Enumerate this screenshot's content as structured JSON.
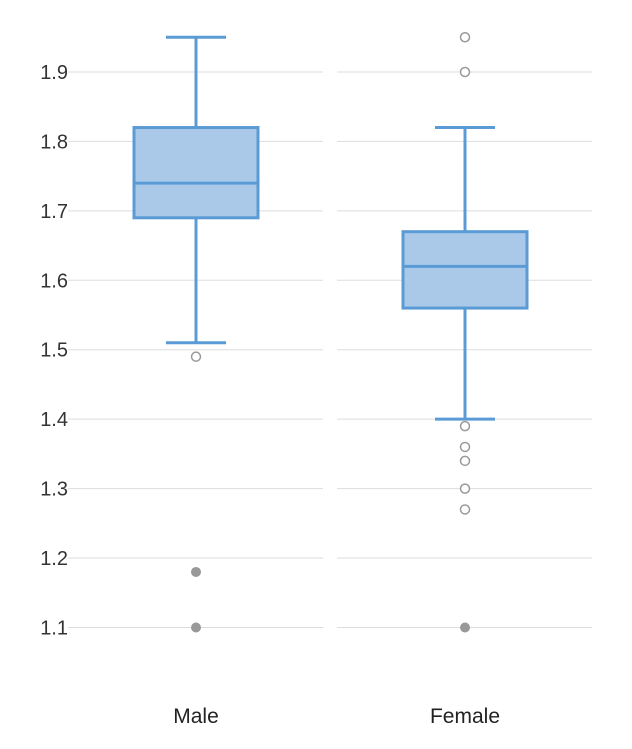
{
  "chart_data": {
    "type": "boxplot",
    "title": "",
    "xlabel": "",
    "ylabel": "",
    "ylim": [
      1.05,
      1.97
    ],
    "yticks": [
      1.1,
      1.2,
      1.3,
      1.4,
      1.5,
      1.6,
      1.7,
      1.8,
      1.9
    ],
    "ytick_labels": [
      "1.1",
      "1.2",
      "1.3",
      "1.4",
      "1.5",
      "1.6",
      "1.7",
      "1.8",
      "1.9"
    ],
    "grid": true,
    "categories": [
      "Male",
      "Female"
    ],
    "boxes": [
      {
        "category": "Male",
        "whisker_low": 1.51,
        "q1": 1.69,
        "median": 1.74,
        "q3": 1.82,
        "whisker_high": 1.95,
        "outliers": [
          1.49
        ],
        "far_outliers": [
          1.18,
          1.1
        ]
      },
      {
        "category": "Female",
        "whisker_low": 1.4,
        "q1": 1.56,
        "median": 1.62,
        "q3": 1.67,
        "whisker_high": 1.82,
        "outliers": [
          1.95,
          1.9,
          1.39,
          1.36,
          1.34,
          1.3,
          1.27
        ],
        "far_outliers": [
          1.1
        ]
      }
    ],
    "colors": {
      "box_fill": "#aac9e9",
      "box_stroke": "#5b9bd5",
      "outlier_stroke": "#999999",
      "far_outlier_fill": "#999999",
      "grid": "#dddddd"
    }
  }
}
